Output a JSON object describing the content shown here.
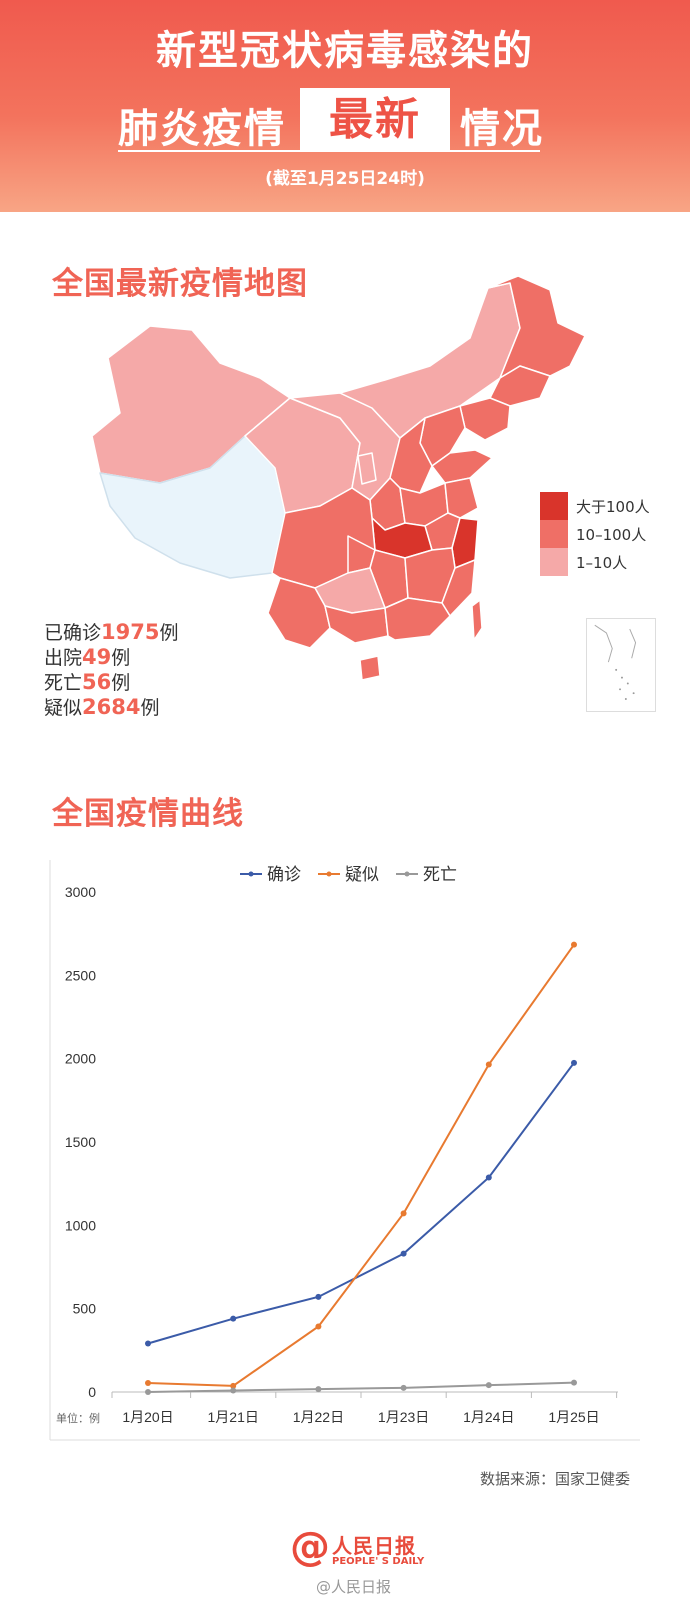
{
  "header": {
    "title_line1": "新型冠状病毒感染的",
    "title_left": "肺炎疫情",
    "title_highlight": "最新",
    "title_right": "情况",
    "date": "(截至1月25日24时)"
  },
  "map_section": {
    "title": "全国最新疫情地图",
    "legend": [
      {
        "label": "大于100人",
        "color": "#d9342b"
      },
      {
        "label": "10–100人",
        "color": "#ef6f66"
      },
      {
        "label": "1–10人",
        "color": "#f5a9a8"
      }
    ],
    "no_case_color": "#e9f4fb",
    "stats": [
      {
        "prefix": "已确诊",
        "value": "1975",
        "suffix": "例"
      },
      {
        "prefix": "出院",
        "value": "49",
        "suffix": "例"
      },
      {
        "prefix": "死亡",
        "value": "56",
        "suffix": "例"
      },
      {
        "prefix": "疑似",
        "value": "2684",
        "suffix": "例"
      }
    ]
  },
  "curve_section": {
    "title": "全国疫情曲线"
  },
  "chart_data": {
    "type": "line",
    "x": [
      "1月20日",
      "1月21日",
      "1月22日",
      "1月23日",
      "1月24日",
      "1月25日"
    ],
    "series": [
      {
        "name": "确诊",
        "color": "#3b5ba8",
        "values": [
          291,
          440,
          571,
          830,
          1287,
          1975
        ]
      },
      {
        "name": "疑似",
        "color": "#e87a30",
        "values": [
          54,
          37,
          393,
          1072,
          1965,
          2684
        ]
      },
      {
        "name": "死亡",
        "color": "#999999",
        "values": [
          0,
          9,
          17,
          25,
          41,
          56
        ]
      }
    ],
    "ylim": [
      0,
      3000
    ],
    "yticks": [
      0,
      500,
      1000,
      1500,
      2000,
      2500,
      3000
    ],
    "unit_label": "单位：例",
    "legend_position": "top-center",
    "grid": false
  },
  "source": "数据来源：国家卫健委",
  "logo": {
    "name": "人民日报",
    "english": "PEOPLE' S DAILY"
  },
  "watermark": "@人民日报"
}
